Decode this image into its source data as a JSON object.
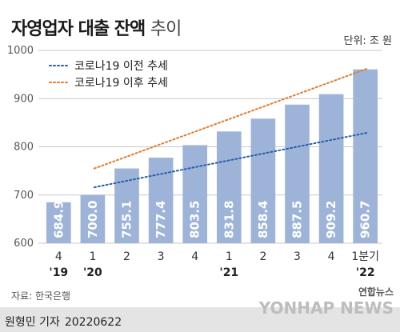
{
  "title_bold": "자영업자 대출 잔액",
  "title_light": "추이",
  "unit": "단위: 조 원",
  "source": "자료: 한국은행",
  "byline_name": "원형민 기자",
  "byline_date": "20220622",
  "logo_top": "연합뉴스",
  "logo_main": "YONHAP NEWS",
  "chart_data": {
    "type": "bar",
    "title": "자영업자 대출 잔액 추이",
    "ylabel": "",
    "ylim": [
      600,
      1000
    ],
    "yticks": [
      600,
      700,
      800,
      900,
      1000
    ],
    "grid": true,
    "legend_position": "top-left",
    "categories": [
      "4",
      "1",
      "2",
      "3",
      "4",
      "1",
      "2",
      "3",
      "4",
      "1분기"
    ],
    "year_labels": [
      "'19",
      "'20",
      "",
      "",
      "",
      "'21",
      "",
      "",
      "",
      "'22"
    ],
    "values": [
      684.9,
      700.0,
      755.1,
      777.4,
      803.5,
      831.8,
      858.4,
      887.5,
      909.2,
      960.7
    ],
    "value_labels": [
      "684.9",
      "700.0",
      "755.1",
      "777.4",
      "803.5",
      "831.8",
      "858.4",
      "887.5",
      "909.2",
      "960.7"
    ],
    "trend_lines": [
      {
        "name": "코로나19 이전 추세",
        "color": "#2b5caa",
        "from_index": 1,
        "to_index": 9,
        "start": 716,
        "end": 829
      },
      {
        "name": "코로나19 이후 추세",
        "color": "#e07b2a",
        "from_index": 1,
        "to_index": 9,
        "start": 755,
        "end": 962
      }
    ],
    "bar_color": "#9db4d8"
  }
}
